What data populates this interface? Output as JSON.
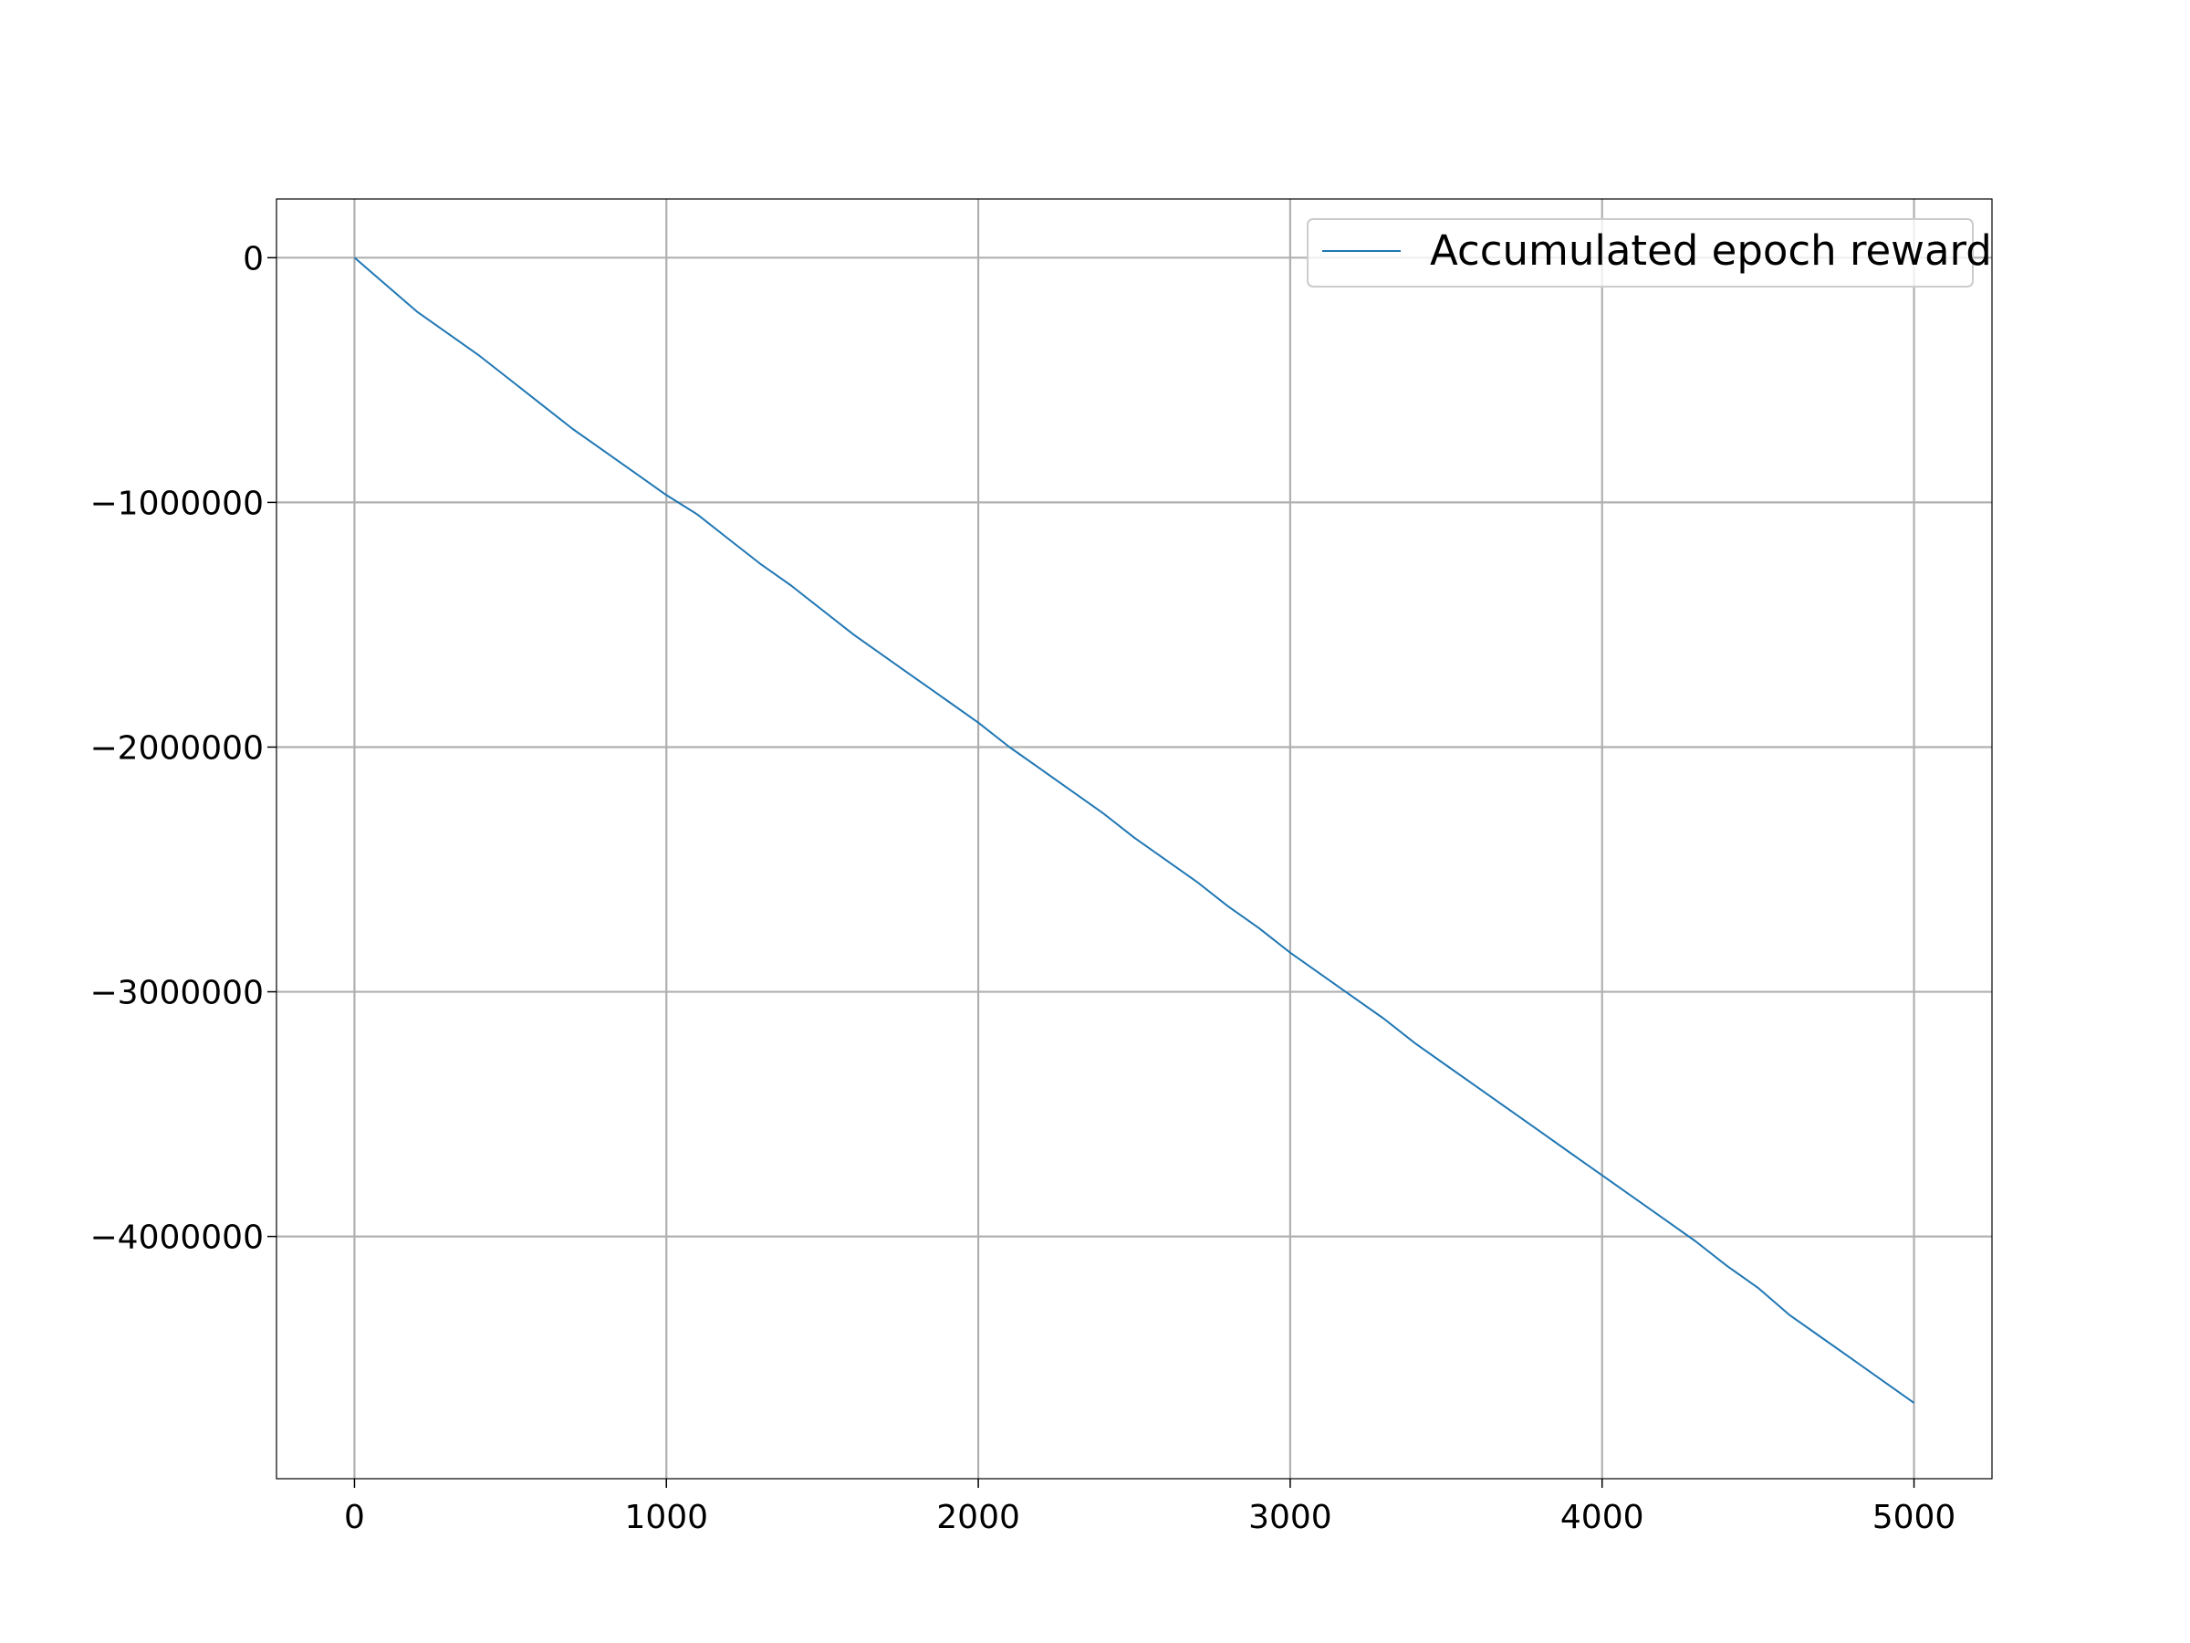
{
  "chart_data": {
    "type": "line",
    "title": "",
    "xlabel": "",
    "ylabel": "",
    "xlim": [
      -250,
      5250
    ],
    "ylim": [
      -4990000,
      240000
    ],
    "x_ticks": [
      0,
      1000,
      2000,
      3000,
      4000,
      5000
    ],
    "x_tick_labels": [
      "0",
      "1000",
      "2000",
      "3000",
      "4000",
      "5000"
    ],
    "y_ticks": [
      0,
      -1000000,
      -2000000,
      -3000000,
      -4000000
    ],
    "y_tick_labels": [
      "0",
      "−1000000",
      "−2000000",
      "−3000000",
      "−4000000"
    ],
    "grid": true,
    "legend_position": "top-right",
    "series": [
      {
        "name": "Accumulated epoch reward",
        "color": "#1f77b4",
        "x": [
          0,
          100,
          200,
          300,
          400,
          500,
          600,
          700,
          800,
          900,
          1000,
          1100,
          1200,
          1300,
          1400,
          1500,
          1600,
          1700,
          1800,
          1900,
          2000,
          2100,
          2200,
          2300,
          2400,
          2500,
          2600,
          2700,
          2800,
          2900,
          3000,
          3100,
          3200,
          3300,
          3400,
          3500,
          3600,
          3700,
          3800,
          3900,
          4000,
          4100,
          4200,
          4300,
          4400,
          4500,
          4600,
          4700,
          4800,
          4900,
          5000
        ],
        "y": [
          0,
          -110000,
          -220000,
          -310000,
          -400000,
          -500000,
          -600000,
          -700000,
          -790000,
          -880000,
          -970000,
          -1050000,
          -1150000,
          -1250000,
          -1340000,
          -1440000,
          -1540000,
          -1630000,
          -1720000,
          -1810000,
          -1900000,
          -2000000,
          -2090000,
          -2180000,
          -2270000,
          -2370000,
          -2460000,
          -2550000,
          -2650000,
          -2740000,
          -2840000,
          -2930000,
          -3020000,
          -3110000,
          -3210000,
          -3300000,
          -3390000,
          -3480000,
          -3570000,
          -3660000,
          -3750000,
          -3840000,
          -3930000,
          -4020000,
          -4120000,
          -4210000,
          -4320000,
          -4410000,
          -4500000,
          -4590000,
          -4680000
        ]
      }
    ]
  }
}
